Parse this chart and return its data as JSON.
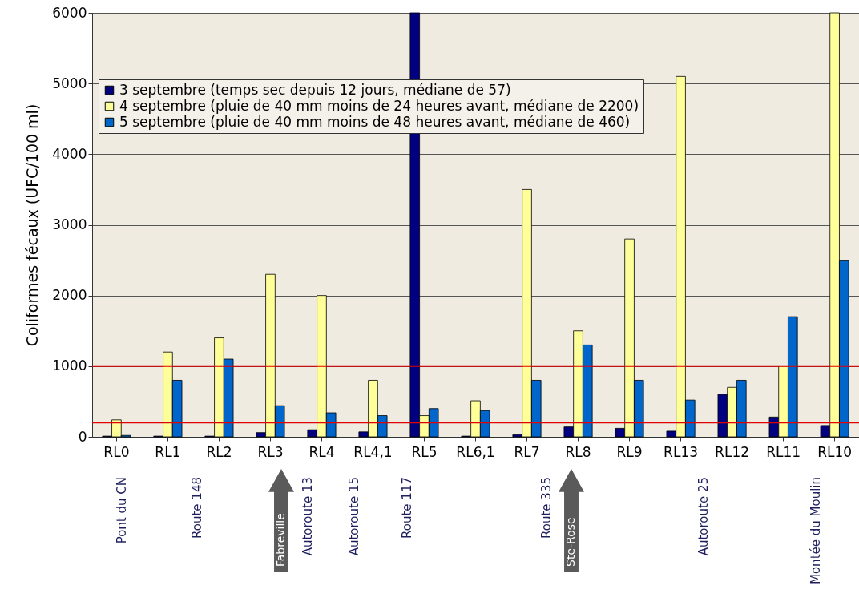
{
  "chart_data": {
    "type": "bar",
    "ylabel": "Coliformes fécaux (UFC/100 ml)",
    "categories": [
      "RL0",
      "RL1",
      "RL2",
      "RL3",
      "RL4",
      "RL4,1",
      "RL5",
      "RL6,1",
      "RL7",
      "RL8",
      "RL9",
      "RL13",
      "RL12",
      "RL11",
      "RL10"
    ],
    "series": [
      {
        "name": "3 septembre (temps sec depuis 12 jours, médiane de 57)",
        "color": "#000080",
        "values": [
          10,
          10,
          10,
          60,
          100,
          70,
          6000,
          10,
          30,
          140,
          120,
          80,
          600,
          280,
          160
        ]
      },
      {
        "name": "4 septembre (pluie de 40 mm moins de 24 heures avant, médiane de 2200)",
        "color": "#ffff99",
        "values": [
          240,
          1200,
          1400,
          2300,
          2000,
          800,
          300,
          510,
          3500,
          1500,
          2800,
          5100,
          700,
          1000,
          6000
        ]
      },
      {
        "name": "5 septembre (pluie de 40 mm moins de 48 heures avant, médiane de 460)",
        "color": "#0066cc",
        "values": [
          20,
          800,
          1100,
          440,
          340,
          300,
          400,
          370,
          800,
          1300,
          800,
          520,
          800,
          1700,
          2500
        ]
      }
    ],
    "ylim": [
      0,
      6000
    ],
    "yticks": [
      0,
      1000,
      2000,
      3000,
      4000,
      5000,
      6000
    ],
    "grid": "y",
    "legend": "top left",
    "ref_lines": [
      {
        "axis": "y",
        "value": 1000,
        "color": "#e00000"
      },
      {
        "axis": "y",
        "value": 200,
        "color": "#e00000"
      }
    ],
    "annotations": [
      "Pont du CN",
      "Route 148",
      "Fabreville",
      "Autoroute 13",
      "Autoroute 15",
      "Route 117",
      "Route 335",
      "Ste-Rose",
      "Autoroute 25",
      "Montée du Moulin"
    ]
  }
}
